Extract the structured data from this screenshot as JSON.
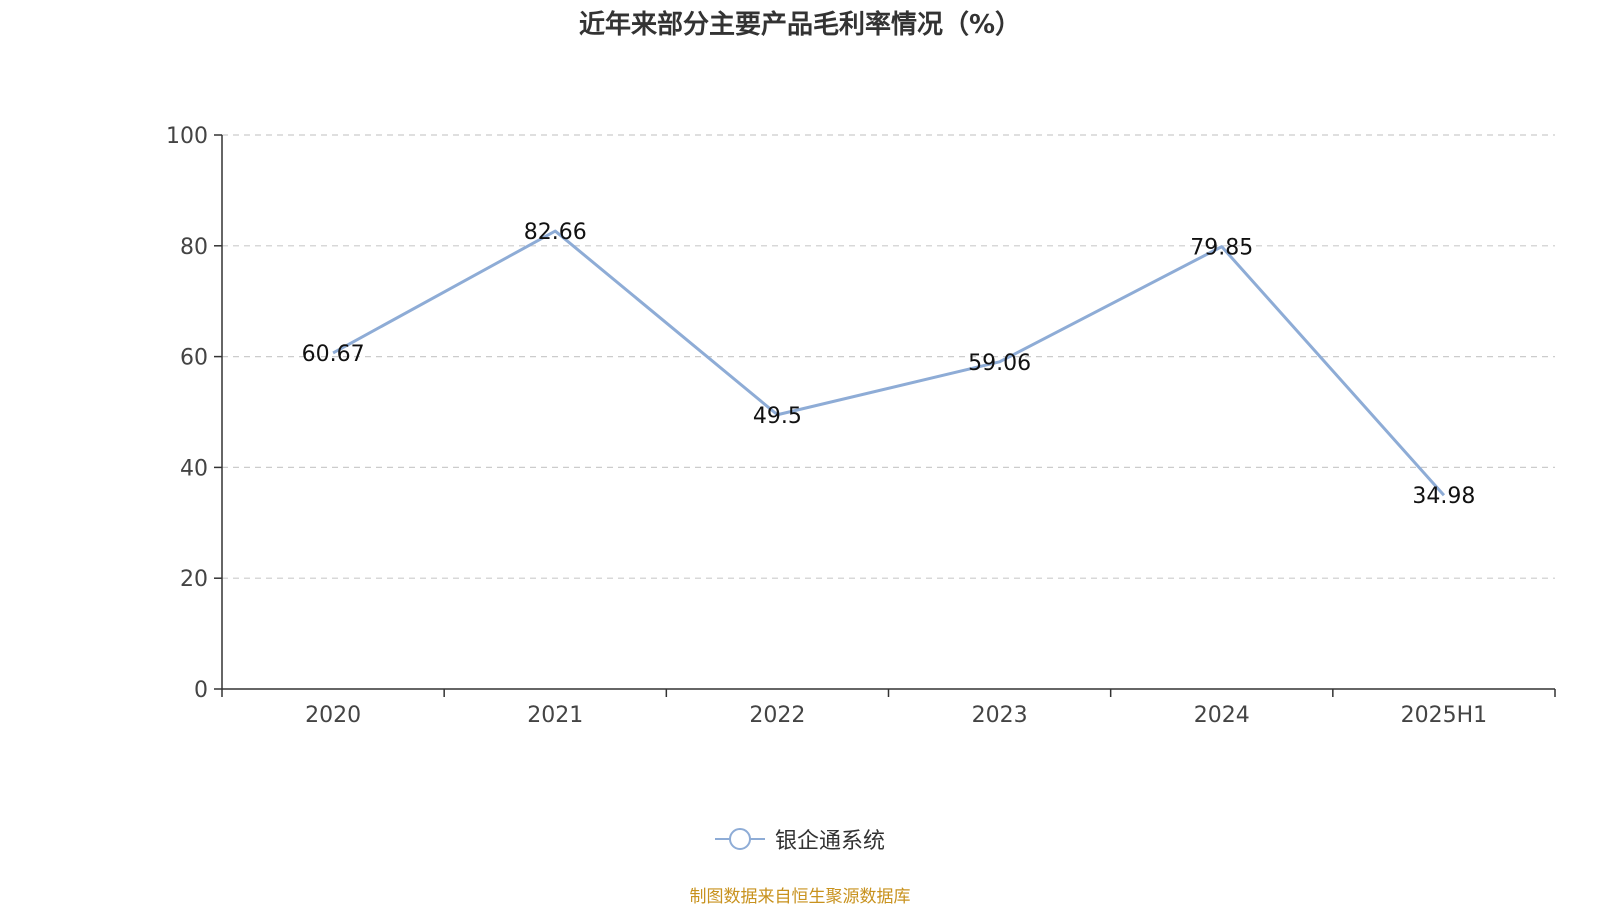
{
  "chart_data": {
    "type": "line",
    "title": "近年来部分主要产品毛利率情况（%）",
    "categories": [
      "2020",
      "2021",
      "2022",
      "2023",
      "2024",
      "2025H1"
    ],
    "series": [
      {
        "name": "银企通系统",
        "values": [
          60.67,
          82.66,
          49.5,
          59.06,
          79.85,
          34.98
        ],
        "labels": [
          "60.67",
          "82.66",
          "49.5",
          "59.06",
          "79.85",
          "34.98"
        ]
      }
    ],
    "ylim": [
      0,
      100
    ],
    "yticks": [
      "0",
      "20",
      "40",
      "60",
      "80",
      "100"
    ],
    "xlabel": "",
    "ylabel": "",
    "grid": true,
    "legend_position": "bottom-center"
  },
  "colors": {
    "series": "#8eacd6",
    "source_text": "#c8921e",
    "title": "#333333"
  },
  "source_note": "制图数据来自恒生聚源数据库"
}
